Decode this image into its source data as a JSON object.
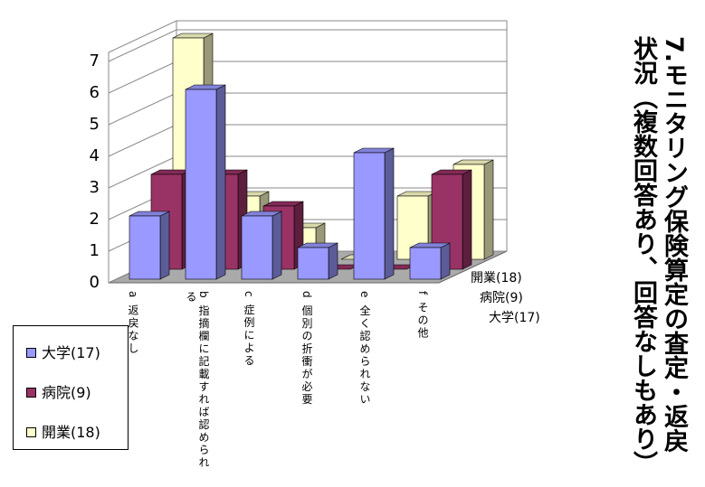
{
  "chart_data": {
    "type": "bar3d",
    "title": "7.モニタリング保険算定の査定・返戻状況（複数回答あり、回答なしもあり）",
    "categories": [
      "a 返戻なし",
      "b 指摘欄に記載すれば認められる",
      "c 症例による",
      "d 個別の折衝が必要",
      "e 全く認められない",
      "f その他"
    ],
    "series": [
      {
        "name": "大学(17)",
        "color": "#9999ff",
        "values": [
          2,
          6,
          2,
          1,
          4,
          1
        ]
      },
      {
        "name": "病院(9)",
        "color": "#993366",
        "values": [
          3,
          3,
          2,
          0,
          0,
          3
        ]
      },
      {
        "name": "開業(18)",
        "color": "#ffffcc",
        "values": [
          7,
          2,
          1,
          0,
          2,
          3
        ]
      }
    ],
    "ylim": [
      0,
      7
    ],
    "yticks": [
      0,
      1,
      2,
      3,
      4,
      5,
      6,
      7
    ],
    "grid": true,
    "legend": "bottom-left"
  }
}
